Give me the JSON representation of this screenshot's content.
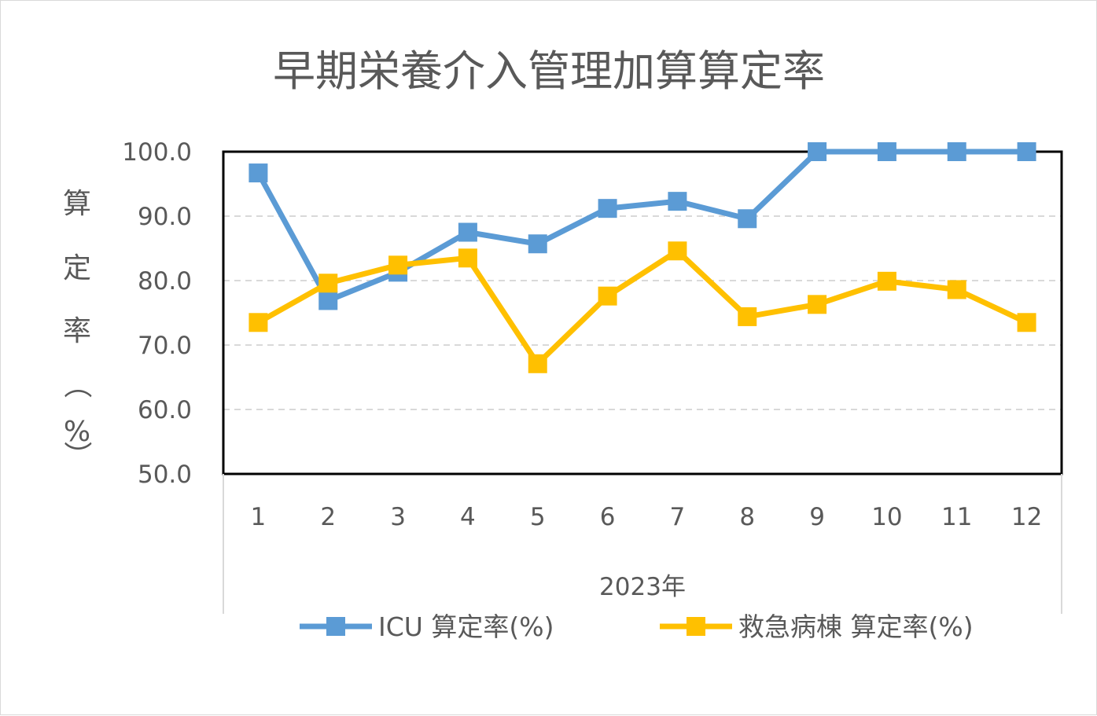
{
  "chart_data": {
    "type": "line",
    "title": "早期栄養介入管理加算算定率",
    "xlabel": "2023年",
    "ylabel_chars": [
      "算",
      "定",
      "率",
      "（",
      "%",
      "）"
    ],
    "categories": [
      "1",
      "2",
      "3",
      "4",
      "5",
      "6",
      "7",
      "8",
      "9",
      "10",
      "11",
      "12"
    ],
    "ylim": [
      50,
      100
    ],
    "yticks": [
      "100.0",
      "90.0",
      "80.0",
      "70.0",
      "60.0",
      "50.0"
    ],
    "grid": true,
    "legend_position": "bottom",
    "series": [
      {
        "name": "ICU 算定率(%)",
        "color": "#5b9bd5",
        "values": [
          96.7,
          76.9,
          81.3,
          87.5,
          85.7,
          91.2,
          92.3,
          89.6,
          100.0,
          100.0,
          100.0,
          100.0
        ]
      },
      {
        "name": "救急病棟 算定率(%)",
        "color": "#ffc000",
        "values": [
          73.5,
          79.6,
          82.4,
          83.5,
          67.1,
          77.6,
          84.6,
          74.4,
          76.3,
          79.9,
          78.6,
          73.5
        ]
      }
    ]
  }
}
